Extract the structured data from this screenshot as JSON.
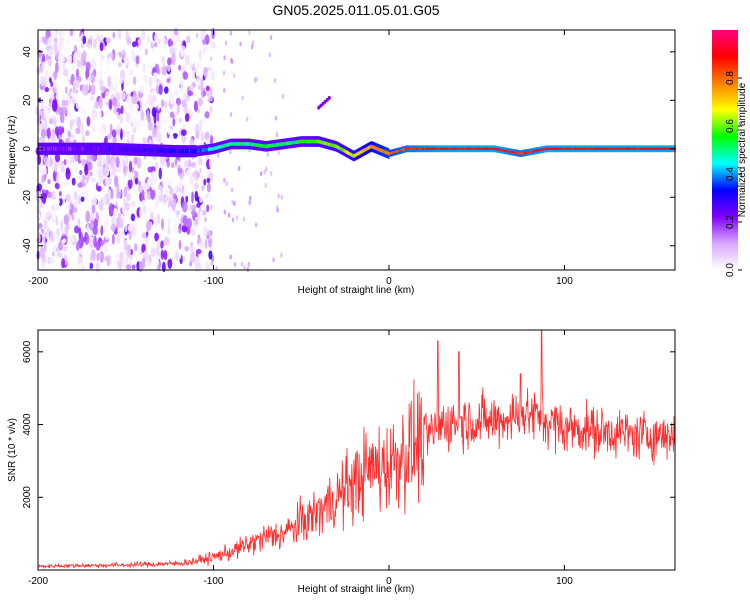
{
  "title": "GN05.2025.011.05.01.G05",
  "chart_data": [
    {
      "type": "heatmap",
      "xlabel": "Height of straight line (km)",
      "ylabel": "Frequency (Hz)",
      "xlim": [
        -200,
        163
      ],
      "ylim": [
        -50,
        49
      ],
      "xticks": [
        -200,
        -100,
        0,
        100
      ],
      "yticks": [
        40,
        20,
        0,
        -20,
        -40
      ],
      "colorbar": {
        "label": "Normalized spectral amplitude",
        "range": [
          0,
          1
        ],
        "ticks": [
          0.0,
          0.2,
          0.4,
          0.6,
          0.8
        ],
        "colormap": [
          "#ffffff",
          "#d9a8ff",
          "#7f00ff",
          "#0000ff",
          "#00ffff",
          "#00ff00",
          "#ffff00",
          "#ff8000",
          "#ff0000",
          "#ff0080"
        ]
      },
      "ridge": [
        {
          "x": -200,
          "freq": 0,
          "amp": 0.2
        },
        {
          "x": -160,
          "freq": 0,
          "amp": 0.25
        },
        {
          "x": -120,
          "freq": -1,
          "amp": 0.3
        },
        {
          "x": -110,
          "freq": -1,
          "amp": 0.35
        },
        {
          "x": -100,
          "freq": 0,
          "amp": 0.45
        },
        {
          "x": -90,
          "freq": 2,
          "amp": 0.5
        },
        {
          "x": -80,
          "freq": 2,
          "amp": 0.5
        },
        {
          "x": -70,
          "freq": 1,
          "amp": 0.55
        },
        {
          "x": -60,
          "freq": 2,
          "amp": 0.5
        },
        {
          "x": -50,
          "freq": 3,
          "amp": 0.55
        },
        {
          "x": -40,
          "freq": 3,
          "amp": 0.6
        },
        {
          "x": -30,
          "freq": 1,
          "amp": 0.6
        },
        {
          "x": -20,
          "freq": -3,
          "amp": 0.65
        },
        {
          "x": -10,
          "freq": 1,
          "amp": 0.75
        },
        {
          "x": 0,
          "freq": -2,
          "amp": 0.8
        },
        {
          "x": 10,
          "freq": 0,
          "amp": 0.85
        },
        {
          "x": 30,
          "freq": 0,
          "amp": 0.9
        },
        {
          "x": 60,
          "freq": 0,
          "amp": 0.9
        },
        {
          "x": 75,
          "freq": -2,
          "amp": 0.85
        },
        {
          "x": 90,
          "freq": 0,
          "amp": 0.9
        },
        {
          "x": 130,
          "freq": 0,
          "amp": 0.9
        },
        {
          "x": 163,
          "freq": 0,
          "amp": 0.9
        }
      ]
    },
    {
      "type": "line",
      "xlabel": "Height of straight line (km)",
      "ylabel": "SNR (10 * v/v)",
      "xlim": [
        -200,
        163
      ],
      "ylim": [
        0,
        6600
      ],
      "xticks": [
        -200,
        -100,
        0,
        100
      ],
      "yticks": [
        2000,
        4000,
        6000
      ],
      "color": "#ff2a2a",
      "series": [
        {
          "x": [
            -200,
            -180,
            -160,
            -140,
            -120,
            -110,
            -100,
            -90,
            -80,
            -70,
            -60,
            -50,
            -40,
            -30,
            -20,
            -10,
            0,
            10,
            20,
            30,
            40,
            50,
            60,
            70,
            80,
            90,
            100,
            110,
            120,
            130,
            140,
            150,
            163
          ],
          "values": [
            100,
            120,
            130,
            150,
            180,
            250,
            350,
            500,
            700,
            900,
            1000,
            1300,
            1600,
            2000,
            2400,
            2800,
            2900,
            3300,
            3600,
            4000,
            4100,
            4100,
            4100,
            4200,
            4300,
            4100,
            3900,
            3900,
            3800,
            3800,
            3700,
            3700,
            3700
          ]
        }
      ],
      "peaks": [
        {
          "x": 28,
          "value": 6300
        },
        {
          "x": 40,
          "value": 6000
        },
        {
          "x": 75,
          "value": 5400
        },
        {
          "x": 87,
          "value": 6600
        }
      ]
    }
  ]
}
